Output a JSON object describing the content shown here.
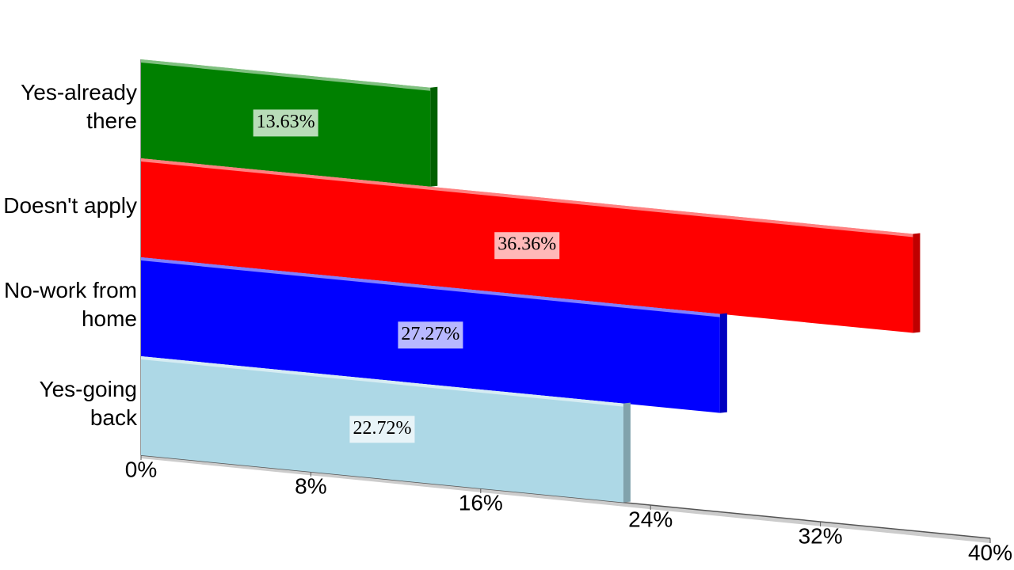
{
  "chart_data": {
    "type": "bar",
    "orientation": "horizontal",
    "categories": [
      "Yes-already there",
      "Doesn't apply",
      "No-work from home",
      "Yes-going back"
    ],
    "values": [
      13.63,
      36.36,
      27.27,
      22.72
    ],
    "value_labels": [
      "13.63%",
      "36.36%",
      "27.27%",
      "22.72%"
    ],
    "colors": [
      "#008000",
      "#ff0000",
      "#0000ff",
      "#add8e6"
    ],
    "xlim": [
      0,
      40
    ],
    "xticks": [
      {
        "value": 0,
        "label": "0%"
      },
      {
        "value": 8,
        "label": "8%"
      },
      {
        "value": 16,
        "label": "16%"
      },
      {
        "value": 24,
        "label": "24%"
      },
      {
        "value": 32,
        "label": "32%"
      },
      {
        "value": 40,
        "label": "40%"
      }
    ]
  }
}
